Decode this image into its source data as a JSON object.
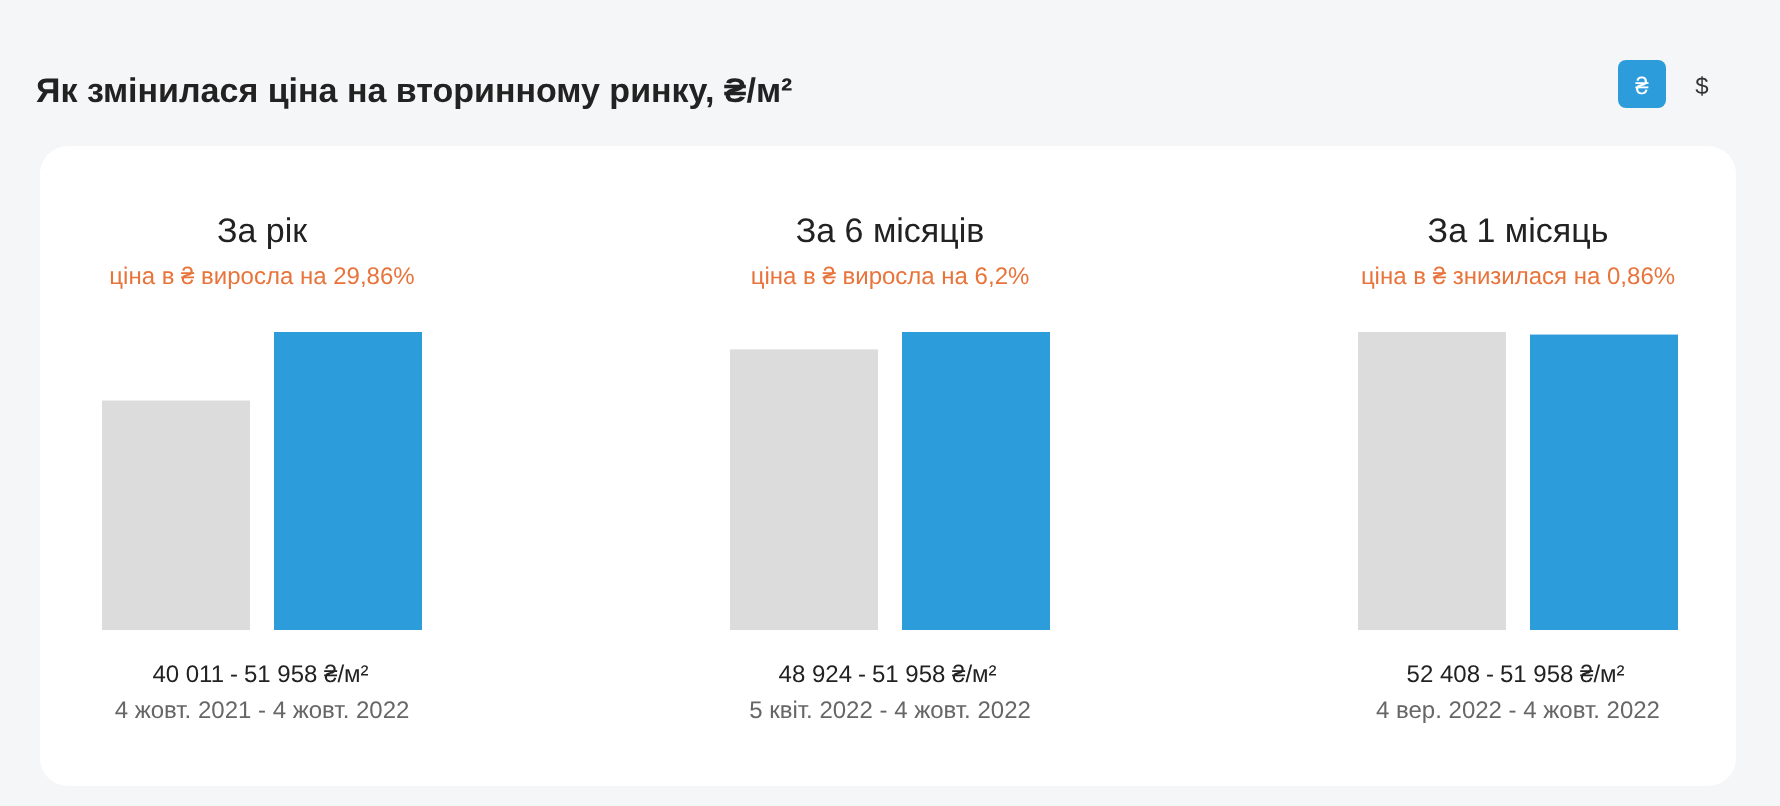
{
  "chart_data": [
    {
      "type": "other",
      "title": "Як змінилася ціна на вторинному ринку, ₴/м²",
      "annotations": [
        "₴",
        "$"
      ]
    },
    {
      "type": "bar",
      "title": "За рік",
      "subtitle": "ціна в ₴ виросла на 29,86%",
      "categories": [
        null,
        null
      ],
      "values": [
        40011,
        51958
      ],
      "value_labels": [
        "40 011",
        "51 958 ₴/м²"
      ],
      "colors": [
        "#dcdcdc",
        "#2d9cdb"
      ],
      "annotations": [
        "-",
        "4 жовт. 2021 - 4 жовт. 2022"
      ]
    },
    {
      "type": "bar",
      "title": "За 6 місяців",
      "subtitle": "ціна в ₴ виросла на 6,2%",
      "categories": [
        null,
        null
      ],
      "values": [
        48924,
        51958
      ],
      "value_labels": [
        "48 924",
        "51 958 ₴/м²"
      ],
      "colors": [
        "#dcdcdc",
        "#2d9cdb"
      ],
      "annotations": [
        "-",
        "5 квіт. 2022 - 4 жовт. 2022"
      ]
    },
    {
      "type": "bar",
      "title": "За 1 місяць",
      "subtitle": "ціна в ₴ знизилася на 0,86%",
      "categories": [
        null,
        null
      ],
      "values": [
        52408,
        51958
      ],
      "value_labels": [
        "52 408",
        "51 958 ₴/м²"
      ],
      "colors": [
        "#dcdcdc",
        "#2d9cdb"
      ],
      "annotations": [
        "-",
        "4 вер. 2022 - 4 жовт. 2022"
      ]
    }
  ]
}
